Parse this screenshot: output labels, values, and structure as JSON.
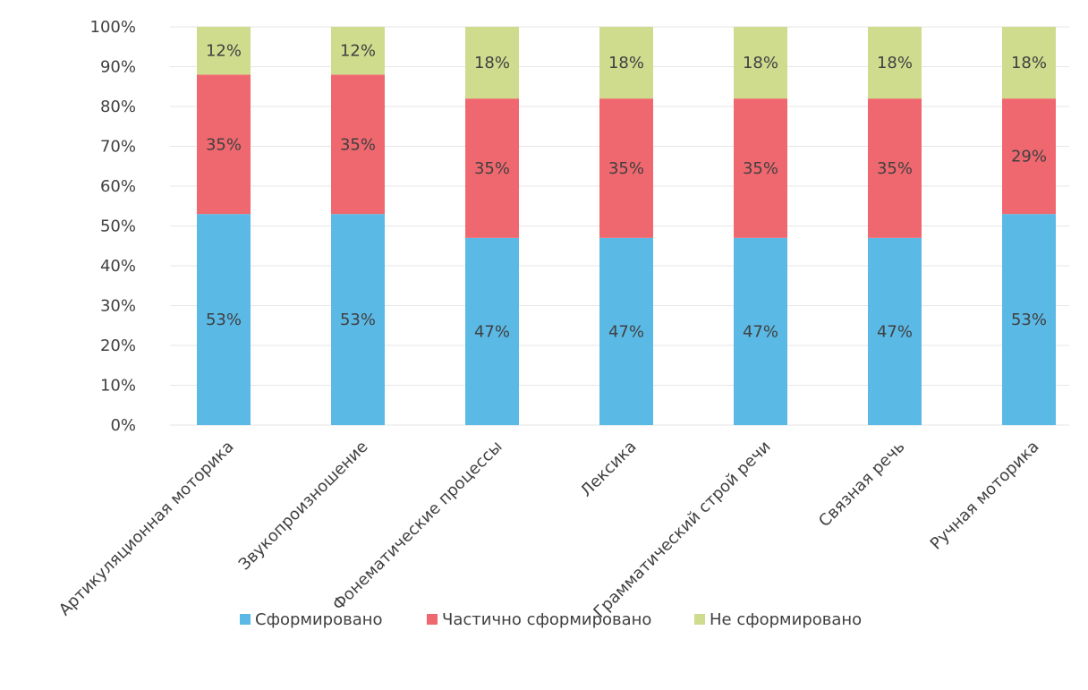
{
  "chart_data": {
    "type": "bar",
    "stacked": true,
    "percent_stacked": true,
    "categories": [
      "Артикуляционная моторика",
      "Звукопроизношение",
      "Фонематические процессы",
      "Лексика",
      "Грамматический строй речи",
      "Связная речь",
      "Ручная моторика"
    ],
    "series": [
      {
        "name": "Сформировано",
        "color": "#5bb9e6",
        "values": [
          53,
          53,
          47,
          47,
          47,
          47,
          53
        ],
        "labels": [
          "53%",
          "53%",
          "47%",
          "47%",
          "47%",
          "47%",
          "53%"
        ]
      },
      {
        "name": "Частично сформировано",
        "color": "#f0686f",
        "values": [
          35,
          35,
          35,
          35,
          35,
          35,
          29
        ],
        "labels": [
          "35%",
          "35%",
          "35%",
          "35%",
          "35%",
          "35%",
          "29%"
        ]
      },
      {
        "name": "Не сформировано",
        "color": "#cfdc8e",
        "values": [
          12,
          12,
          18,
          18,
          18,
          18,
          18
        ],
        "labels": [
          "12%",
          "12%",
          "18%",
          "18%",
          "18%",
          "18%",
          "18%"
        ]
      }
    ],
    "ylim": [
      0,
      100
    ],
    "yticks": [
      "0%",
      "10%",
      "20%",
      "30%",
      "40%",
      "50%",
      "60%",
      "70%",
      "80%",
      "90%",
      "100%"
    ],
    "grid": true,
    "legend_position": "bottom",
    "title": "",
    "xlabel": "",
    "ylabel": ""
  }
}
